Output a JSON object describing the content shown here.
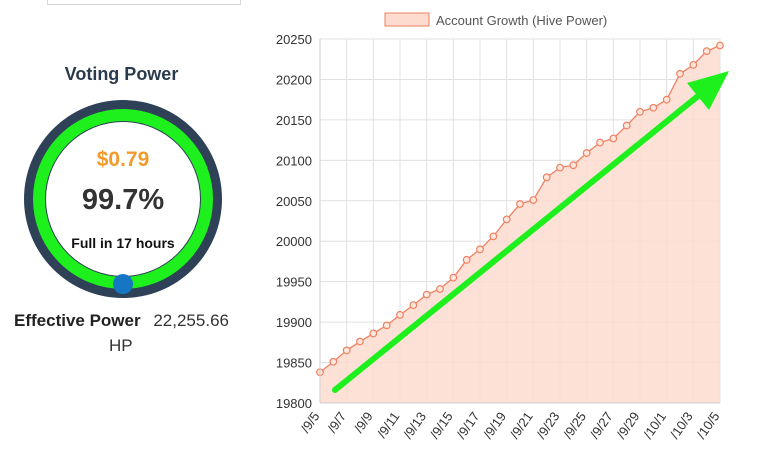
{
  "voting": {
    "title": "Voting Power",
    "value": "$0.79",
    "percent": "99.7%",
    "percent_num": 99.7,
    "full_text": "Full in 17 hours",
    "colors": {
      "ring_bg": "#2e4156",
      "ring": "#1df01d",
      "knob": "#1577c3",
      "value": "#f39a2c"
    }
  },
  "effective": {
    "label": "Effective Power",
    "value": "22,255.66",
    "unit": "HP"
  },
  "chart_data": {
    "type": "area",
    "legend": "Account Growth (Hive Power)",
    "legend_position": "top",
    "grid": true,
    "ylim": [
      19800,
      20250
    ],
    "yticks": [
      19800,
      19850,
      19900,
      19950,
      20000,
      20050,
      20100,
      20150,
      20200,
      20250
    ],
    "xtick_labels": [
      "/9/5",
      "/9/7",
      "/9/9",
      "/9/11",
      "/9/13",
      "/9/15",
      "/9/17",
      "/9/19",
      "/9/21",
      "/9/23",
      "/9/25",
      "/9/27",
      "/9/29",
      "/10/1",
      "/10/3",
      "/10/5"
    ],
    "series": [
      {
        "name": "Account Growth (Hive Power)",
        "values": [
          19838,
          19851,
          19865,
          19876,
          19886,
          19896,
          19909,
          19921,
          19934,
          19941,
          19955,
          19977,
          19990,
          20006,
          20027,
          20046,
          20051,
          20079,
          20091,
          20094,
          20109,
          20122,
          20127,
          20143,
          20160,
          20165,
          20175,
          20207,
          20218,
          20235,
          20242
        ]
      }
    ],
    "colors": {
      "line": "#ee8162",
      "fill": "#fddccf",
      "arrow": "#1df01d",
      "grid": "#e0e0e0",
      "axis_text": "#555"
    }
  }
}
